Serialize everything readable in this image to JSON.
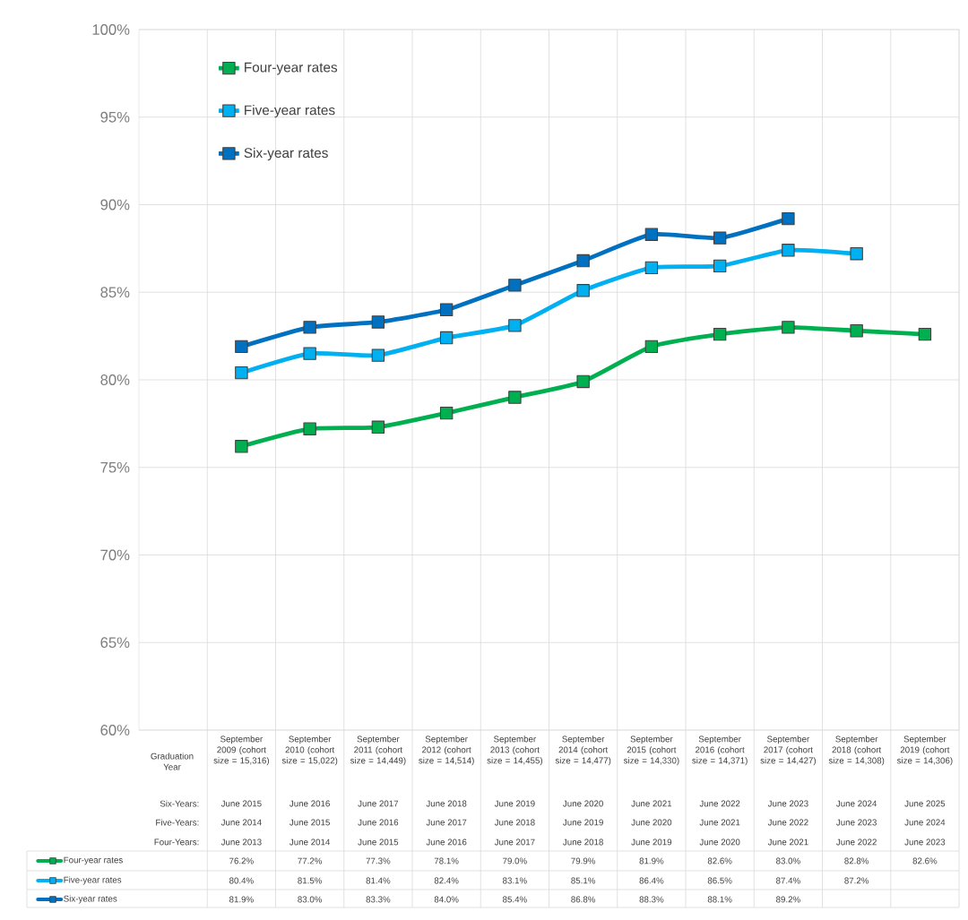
{
  "chart_data": {
    "type": "line",
    "categories": [
      "September 2009 (cohort size = 15,316)",
      "September 2010 (cohort size = 15,022)",
      "September 2011 (cohort size = 14,449)",
      "September 2012 (cohort size = 14,514)",
      "September 2013 (cohort size = 14,455)",
      "September 2014 (cohort size = 14,477)",
      "September 2015 (cohort size = 14,330)",
      "September 2016 (cohort size = 14,371)",
      "September 2017 (cohort size = 14,427)",
      "September 2018 (cohort size = 14,308)",
      "September 2019 (cohort size = 14,306)"
    ],
    "series": [
      {
        "name": "Four-year rates",
        "color": "#00b050",
        "values": [
          76.2,
          77.2,
          77.3,
          78.1,
          79.0,
          79.9,
          81.9,
          82.6,
          83.0,
          82.8,
          82.6
        ],
        "value_labels": [
          "76.2%",
          "77.2%",
          "77.3%",
          "78.1%",
          "79.0%",
          "79.9%",
          "81.9%",
          "82.6%",
          "83.0%",
          "82.8%",
          "82.6%"
        ]
      },
      {
        "name": "Five-year rates",
        "color": "#00b0f0",
        "values": [
          80.4,
          81.5,
          81.4,
          82.4,
          83.1,
          85.1,
          86.4,
          86.5,
          87.4,
          87.2,
          null
        ],
        "value_labels": [
          "80.4%",
          "81.5%",
          "81.4%",
          "82.4%",
          "83.1%",
          "85.1%",
          "86.4%",
          "86.5%",
          "87.4%",
          "87.2%",
          null
        ]
      },
      {
        "name": "Six-year rates",
        "color": "#0070c0",
        "values": [
          81.9,
          83.0,
          83.3,
          84.0,
          85.4,
          86.8,
          88.3,
          88.1,
          89.2,
          null,
          null
        ],
        "value_labels": [
          "81.9%",
          "83.0%",
          "83.3%",
          "84.0%",
          "85.4%",
          "86.8%",
          "88.3%",
          "88.1%",
          "89.2%",
          null,
          null
        ]
      }
    ],
    "annotations": [
      "Graduation Year",
      "Six-Years:",
      "Five-Years:",
      "Four-Years:",
      "June 2015",
      "June 2016",
      "June 2017",
      "June 2018",
      "June 2019",
      "June 2020",
      "June 2021",
      "June 2022",
      "June 2023",
      "June 2024",
      "June 2025",
      "June 2014",
      "June 2015",
      "June 2016",
      "June 2017",
      "June 2018",
      "June 2019",
      "June 2020",
      "June 2021",
      "June 2022",
      "June 2023",
      "June 2024",
      "June 2013",
      "June 2014",
      "June 2015",
      "June 2016",
      "June 2017",
      "June 2018",
      "June 2019",
      "June 2020",
      "June 2021",
      "June 2022",
      "June 2023"
    ],
    "ylim": [
      60,
      100
    ],
    "yticks": [
      {
        "value": 60,
        "label": "60%"
      },
      {
        "value": 65,
        "label": "65%"
      },
      {
        "value": 70,
        "label": "70%"
      },
      {
        "value": 75,
        "label": "75%"
      },
      {
        "value": 80,
        "label": "80%"
      },
      {
        "value": 85,
        "label": "85%"
      },
      {
        "value": 90,
        "label": "90%"
      },
      {
        "value": 95,
        "label": "95%"
      },
      {
        "value": 100,
        "label": "100%"
      }
    ],
    "grid": true,
    "legend": "top left",
    "marker": "square",
    "line_style": "solid"
  }
}
